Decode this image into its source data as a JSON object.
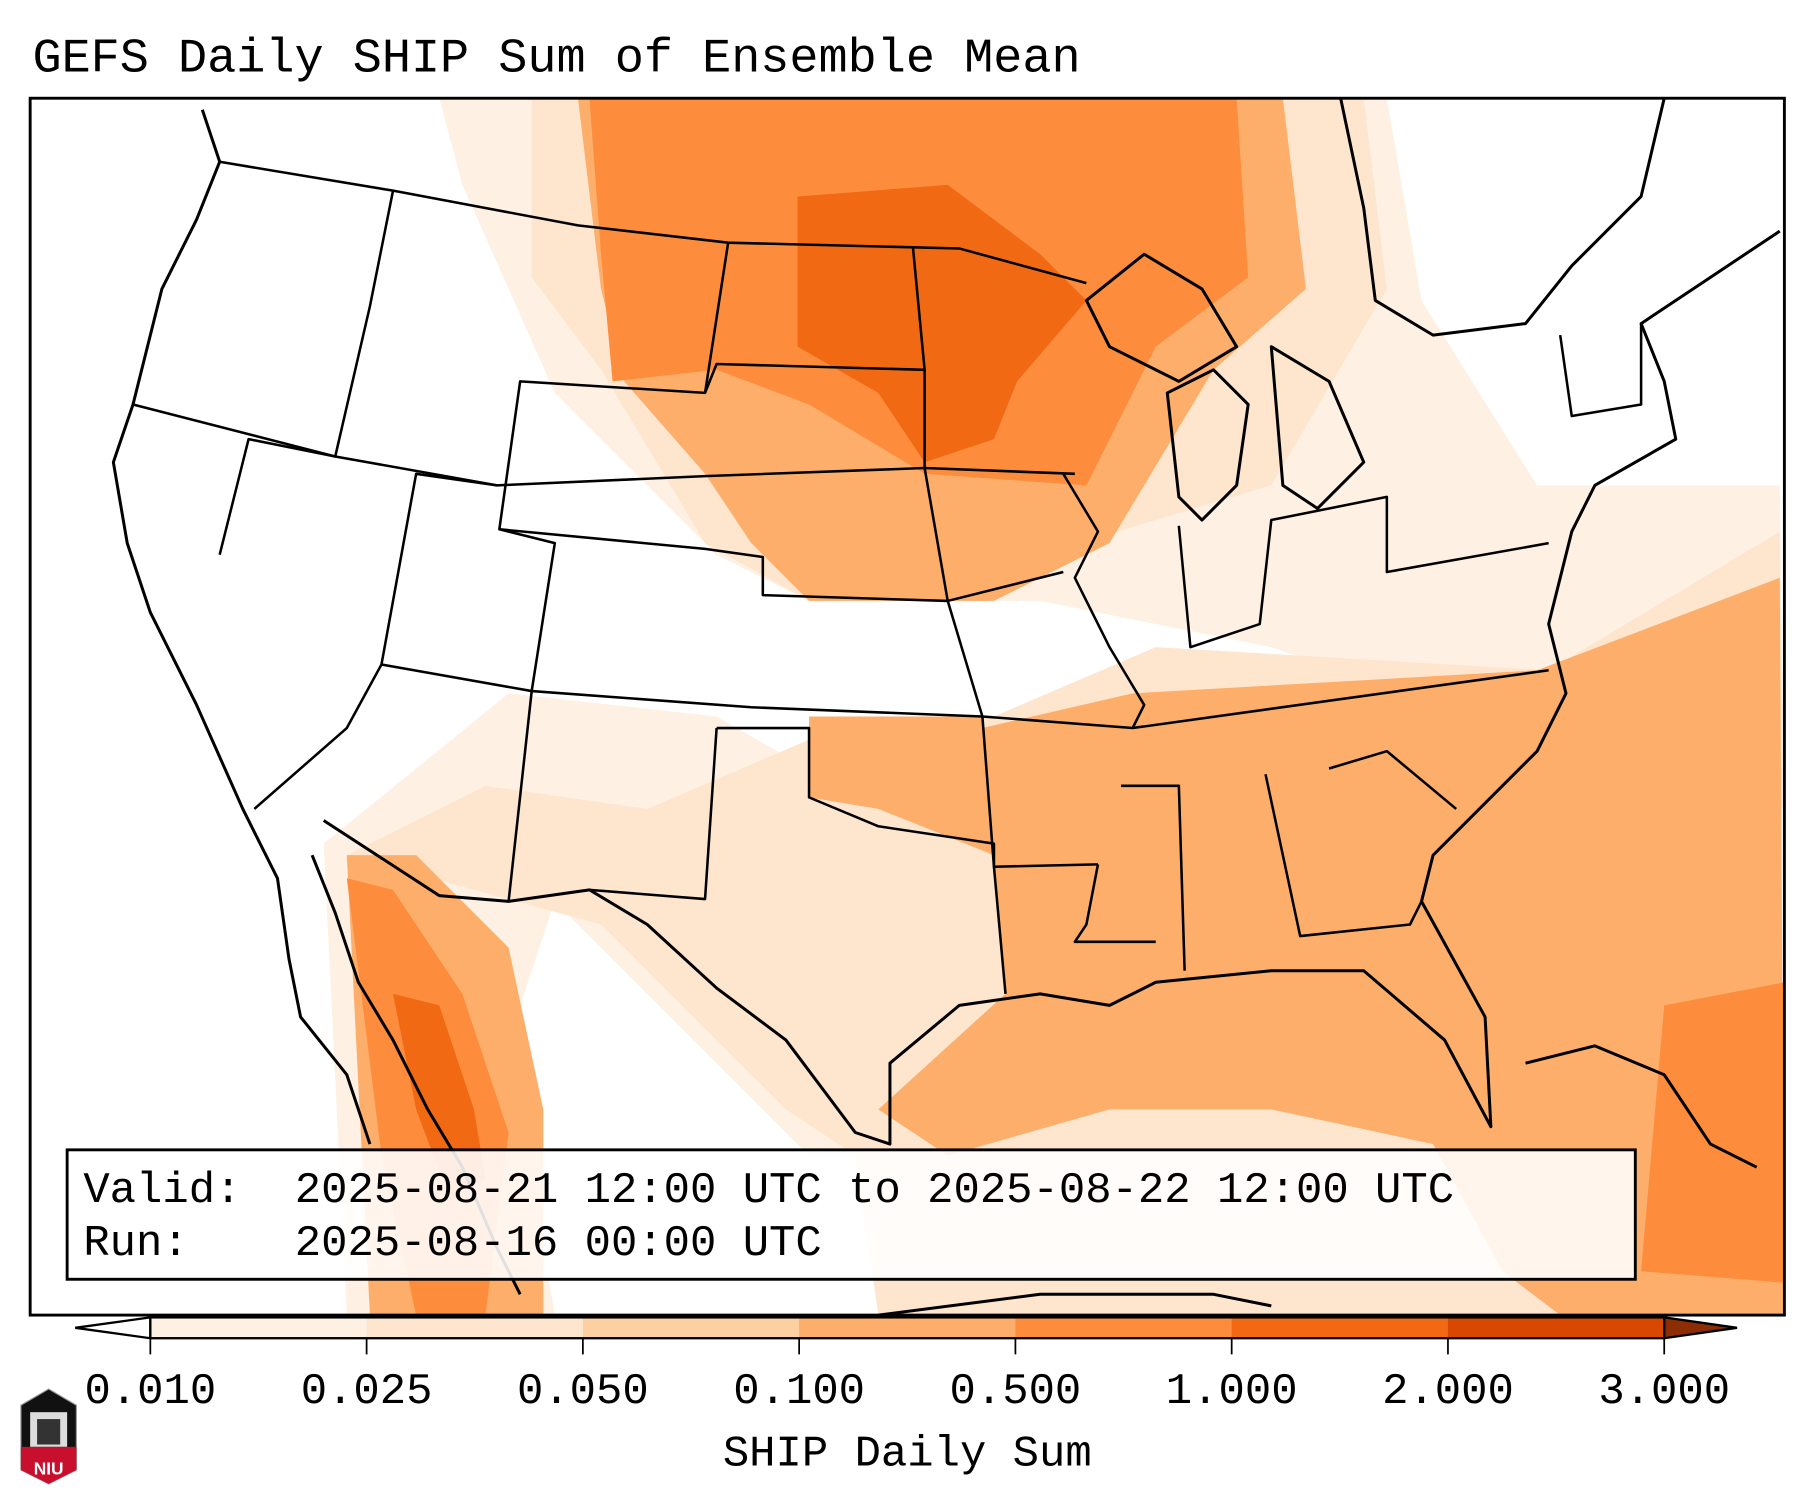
{
  "title": "GEFS Daily SHIP Sum of Ensemble Mean",
  "info_box": {
    "valid_label": "Valid:",
    "valid_value": "2025-08-21 12:00 UTC to 2025-08-22 12:00 UTC",
    "run_label": "Run:",
    "run_value": "2025-08-16 00:00 UTC"
  },
  "colorbar": {
    "label": "SHIP Daily Sum",
    "ticks": [
      "0.010",
      "0.025",
      "0.050",
      "0.100",
      "0.500",
      "1.000",
      "2.000",
      "3.000"
    ],
    "colors": [
      "#fef1e3",
      "#fee6ce",
      "#fdd0a2",
      "#fdae6b",
      "#fd8d3c",
      "#f16913",
      "#d94801"
    ],
    "under_color": "#ffffff",
    "over_color": "#8c2d04"
  },
  "logo": {
    "text": "NIU"
  }
}
